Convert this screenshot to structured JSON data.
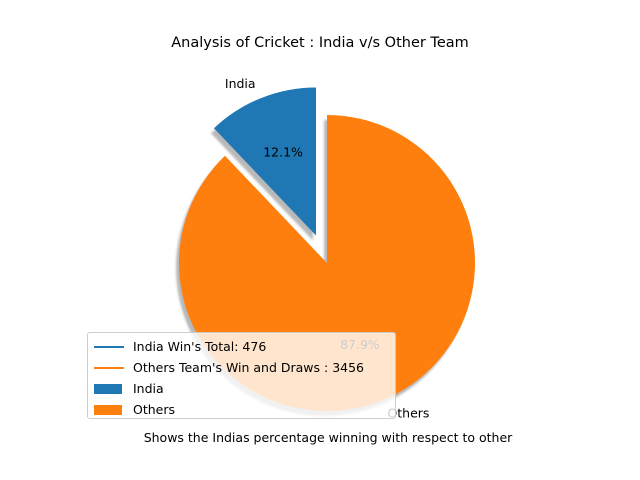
{
  "chart_data": {
    "type": "pie",
    "title": "Analysis of Cricket : India v/s Other Team",
    "xlabel": "Shows the Indias percentage winning with respect to other",
    "slices": [
      {
        "label": "India",
        "value": 476,
        "pct_label": "12.1%",
        "color": "#1f77b4",
        "exploded": true
      },
      {
        "label": "Others",
        "value": 3456,
        "pct_label": "87.9%",
        "color": "#ff7f0e",
        "exploded": false
      }
    ],
    "shadow": true,
    "start_angle_deg": 90,
    "legend": {
      "placement": "lower-left",
      "entries": [
        {
          "kind": "line",
          "label": "India Win's Total: 476",
          "color": "#1f77b4"
        },
        {
          "kind": "line",
          "label": "Others Team's Win and Draws : 3456",
          "color": "#ff7f0e"
        },
        {
          "kind": "patch",
          "label": "India",
          "color": "#1f77b4"
        },
        {
          "kind": "patch",
          "label": "Others",
          "color": "#ff7f0e"
        }
      ]
    }
  }
}
